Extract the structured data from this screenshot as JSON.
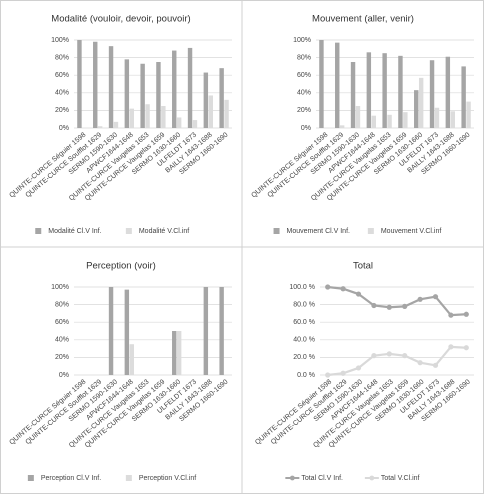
{
  "chart_data": [
    {
      "type": "bar",
      "title": "Modalité (vouloir, devoir, pouvoir)",
      "categories": [
        "QUINTE-CURCE Séguier 1598",
        "QUINTE-CURCE Soufflot 1629",
        "SERMO 1590-1630",
        "APWCF1644-1648",
        "QUINTE-CURCE Vaugelas 1653",
        "QUINTE-CURCE Vaugelas 1659",
        "SERMO 1630-1660",
        "ULFELDT 1673",
        "BAILLY 1643-1688",
        "SERMO 1660-1690"
      ],
      "series": [
        {
          "name": "Modalité Cl.V Inf.",
          "color": "#a5a5a5",
          "values": [
            100,
            98,
            93,
            78,
            73,
            75,
            88,
            91,
            63,
            68
          ]
        },
        {
          "name": "Modalité V.Cl.inf",
          "color": "#dcdcdc",
          "values": [
            0,
            2,
            7,
            22,
            27,
            25,
            12,
            9,
            37,
            32
          ]
        }
      ],
      "ylim": [
        0,
        100
      ],
      "yticks": [
        {
          "value": 0,
          "label": "0%"
        },
        {
          "value": 20,
          "label": "20%"
        },
        {
          "value": 40,
          "label": "40%"
        },
        {
          "value": 60,
          "label": "60%"
        },
        {
          "value": 80,
          "label": "80%"
        },
        {
          "value": 100,
          "label": "100%"
        }
      ],
      "grid": true,
      "legend": "bottom"
    },
    {
      "type": "bar",
      "title": "Mouvement (aller, venir)",
      "categories": [
        "QUINTE-CURCE Séguier 1598",
        "QUINTE-CURCE Soufflot 1629",
        "SERMO 1590-1630",
        "APWCF1644-1648",
        "QUINTE-CURCE Vaugelas 1653",
        "QUINTE-CURCE Vaugelas 1659",
        "SERMO 1630-1660",
        "ULFELDT 1673",
        "BAILLY 1643-1688",
        "SERMO 1660-1690"
      ],
      "series": [
        {
          "name": "Mouvement Cl.V Inf.",
          "color": "#a5a5a5",
          "values": [
            100,
            97,
            75,
            86,
            85,
            82,
            43,
            77,
            81,
            70
          ]
        },
        {
          "name": "Mouvement V.Cl.inf",
          "color": "#dcdcdc",
          "values": [
            0,
            3,
            25,
            14,
            15,
            18,
            57,
            23,
            19,
            30
          ]
        }
      ],
      "ylim": [
        0,
        100
      ],
      "yticks": [
        {
          "value": 0,
          "label": "0%"
        },
        {
          "value": 20,
          "label": "20%"
        },
        {
          "value": 40,
          "label": "40%"
        },
        {
          "value": 60,
          "label": "60%"
        },
        {
          "value": 80,
          "label": "80%"
        },
        {
          "value": 100,
          "label": "100%"
        }
      ],
      "grid": true,
      "legend": "bottom"
    },
    {
      "type": "bar",
      "title": "Perception (voir)",
      "categories": [
        "QUINTE-CURCE Séguier 1598",
        "QUINTE-CURCE Soufflot 1629",
        "SERMO 1590-1630",
        "APWCF1644-1648",
        "QUINTE-CURCE Vaugelas 1653",
        "QUINTE-CURCE Vaugelas 1659",
        "SERMO 1630-1660",
        "ULFELDT 1673",
        "BAILLY 1643-1688",
        "SERMO 1660-1690"
      ],
      "series": [
        {
          "name": "Perception Cl.V Inf.",
          "color": "#a5a5a5",
          "values": [
            0,
            0,
            100,
            97,
            0,
            0,
            50,
            0,
            100,
            100
          ]
        },
        {
          "name": "Perception V.Cl.inf",
          "color": "#dcdcdc",
          "values": [
            0,
            0,
            0,
            35,
            0,
            0,
            50,
            0,
            0,
            0
          ]
        }
      ],
      "ylim": [
        0,
        100
      ],
      "yticks": [
        {
          "value": 0,
          "label": "0%"
        },
        {
          "value": 20,
          "label": "20%"
        },
        {
          "value": 40,
          "label": "40%"
        },
        {
          "value": 60,
          "label": "60%"
        },
        {
          "value": 80,
          "label": "80%"
        },
        {
          "value": 100,
          "label": "100%"
        }
      ],
      "grid": true,
      "legend": "bottom"
    },
    {
      "type": "line",
      "title": "Total",
      "categories": [
        "QUINTE-CURCE Séguier 1598",
        "QUINTE-CURCE Soufflot 1629",
        "SERMO 1590-1630",
        "APWCF1644-1648",
        "QUINTE-CURCE Vaugelas 1653",
        "QUINTE-CURCE Vaugelas 1659",
        "SERMO 1630-1660",
        "ULFELDT 1673",
        "BAILLY 1643-1688",
        "SERMO 1660-1690"
      ],
      "series": [
        {
          "name": "Total Cl.V Inf.",
          "color": "#a5a5a5",
          "values": [
            100,
            98,
            92,
            79,
            77,
            78,
            86,
            89,
            68,
            69
          ]
        },
        {
          "name": "Total V.Cl.inf",
          "color": "#d9d9d9",
          "values": [
            0,
            2,
            8,
            22,
            24,
            22,
            14,
            11,
            32,
            31
          ]
        }
      ],
      "ylim": [
        0,
        100
      ],
      "yticks": [
        {
          "value": 0,
          "label": "0.0 %"
        },
        {
          "value": 20,
          "label": "20.0 %"
        },
        {
          "value": 40,
          "label": "40.0 %"
        },
        {
          "value": 60,
          "label": "60.0 %"
        },
        {
          "value": 80,
          "label": "80.0 %"
        },
        {
          "value": 100,
          "label": "100.0 %"
        }
      ],
      "grid": true,
      "legend": "bottom"
    }
  ]
}
